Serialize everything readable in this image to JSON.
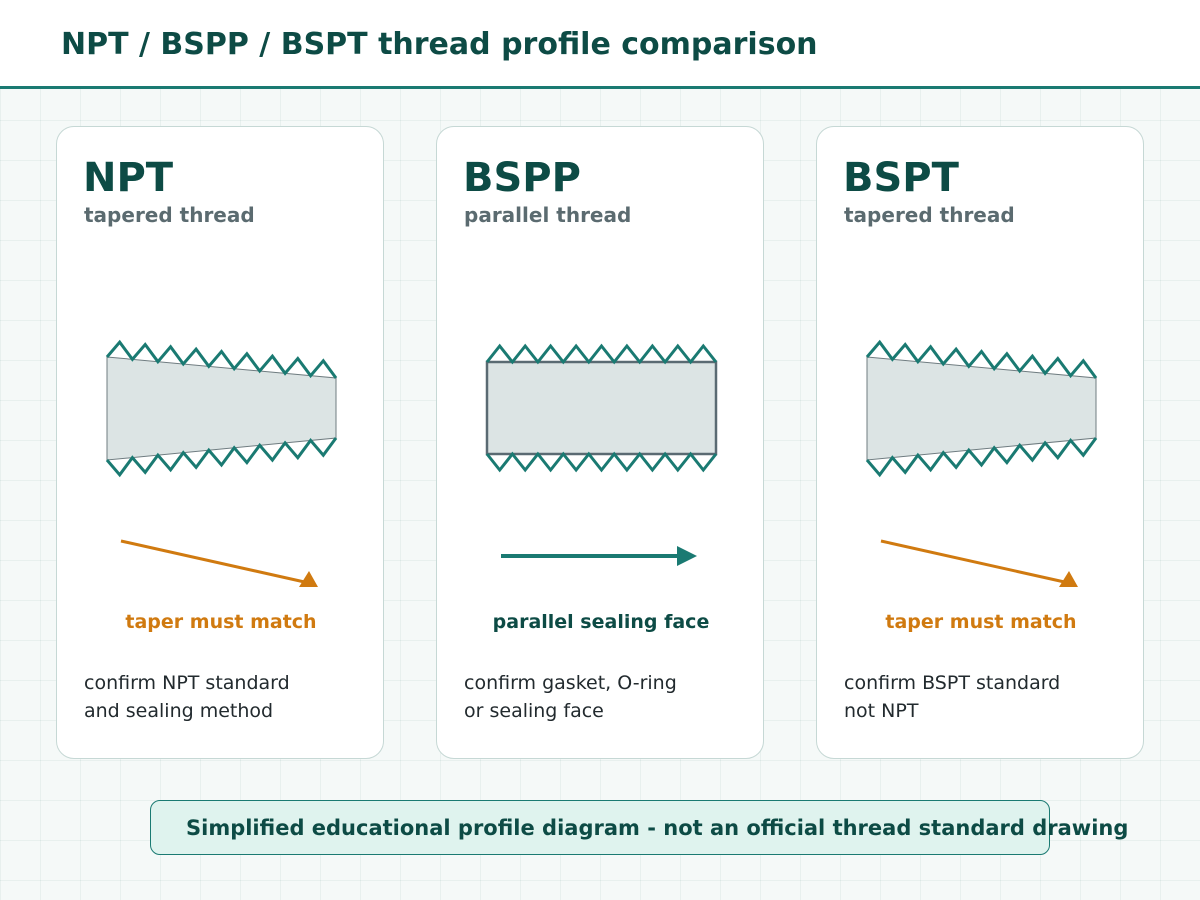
{
  "title": "NPT / BSPP / BSPT thread profile comparison",
  "cards": [
    {
      "name": "NPT",
      "subtitle": "tapered thread",
      "kind": "tapered",
      "note": "taper must match",
      "note_color": "#d07a10",
      "desc": [
        "confirm NPT standard",
        "and sealing method"
      ]
    },
    {
      "name": "BSPP",
      "subtitle": "parallel thread",
      "kind": "parallel",
      "note": "parallel sealing face",
      "note_color": "#0d4b45",
      "desc": [
        "confirm gasket, O-ring",
        "or sealing face"
      ]
    },
    {
      "name": "BSPT",
      "subtitle": "tapered thread",
      "kind": "tapered",
      "note": "taper must match",
      "note_color": "#d07a10",
      "desc": [
        "confirm BSPT standard",
        "not NPT"
      ]
    }
  ],
  "footer": "Simplified educational profile diagram - not an official thread standard drawing",
  "colors": {
    "thread": "#1a7a72",
    "body_fill": "#dce4e4",
    "body_stroke": "#5a6a72",
    "taper_arrow": "#d07a10",
    "parallel_arrow": "#1a7a72"
  }
}
